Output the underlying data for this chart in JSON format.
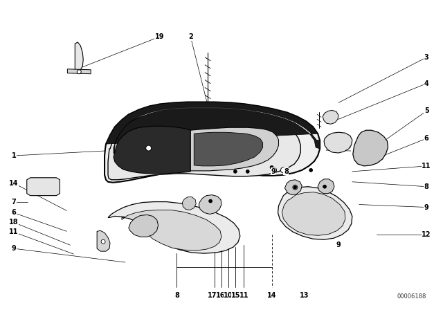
{
  "bg_color": "#ffffff",
  "line_color": "#000000",
  "fig_width": 6.4,
  "fig_height": 4.48,
  "dpi": 100,
  "catalog_number": "00006188",
  "label_fontsize": 7.0,
  "label_fontweight": "bold"
}
